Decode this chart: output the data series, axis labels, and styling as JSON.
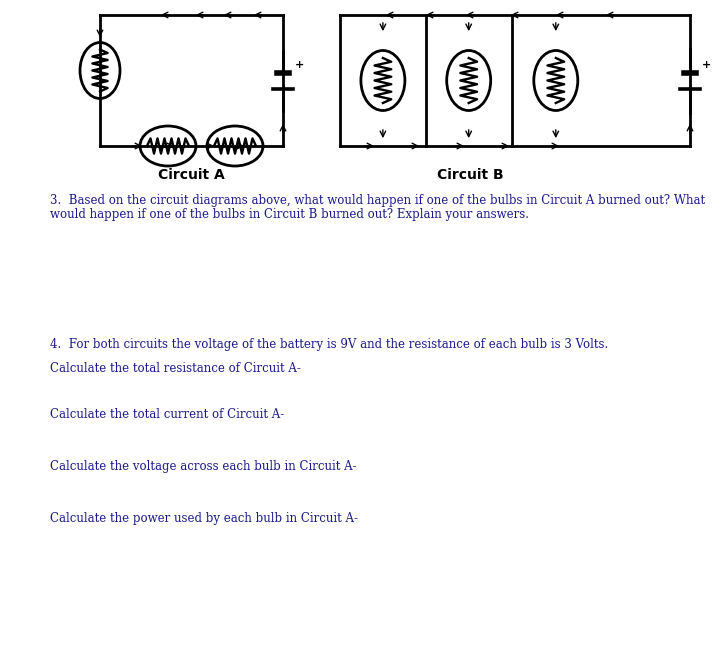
{
  "background_color": "#ffffff",
  "circuit_a_label": "Circuit A",
  "circuit_b_label": "Circuit B",
  "question3_text": "3.  Based on the circuit diagrams above, what would happen if one of the bulbs in Circuit A burned out? What\nwould happen if one of the bulbs in Circuit B burned out? Explain your answers.",
  "question4_text": "4.  For both circuits the voltage of the battery is 9V and the resistance of each bulb is 3 Volts.",
  "calc1": "Calculate the total resistance of Circuit A-",
  "calc2": "Calculate the total current of Circuit A-",
  "calc3": "Calculate the voltage across each bulb in Circuit A-",
  "calc4": "Calculate the power used by each bulb in Circuit A-",
  "text_color": "#1a1a8c",
  "circuit_color": "#000000",
  "label_fontsize": 10,
  "body_fontsize": 8.5
}
